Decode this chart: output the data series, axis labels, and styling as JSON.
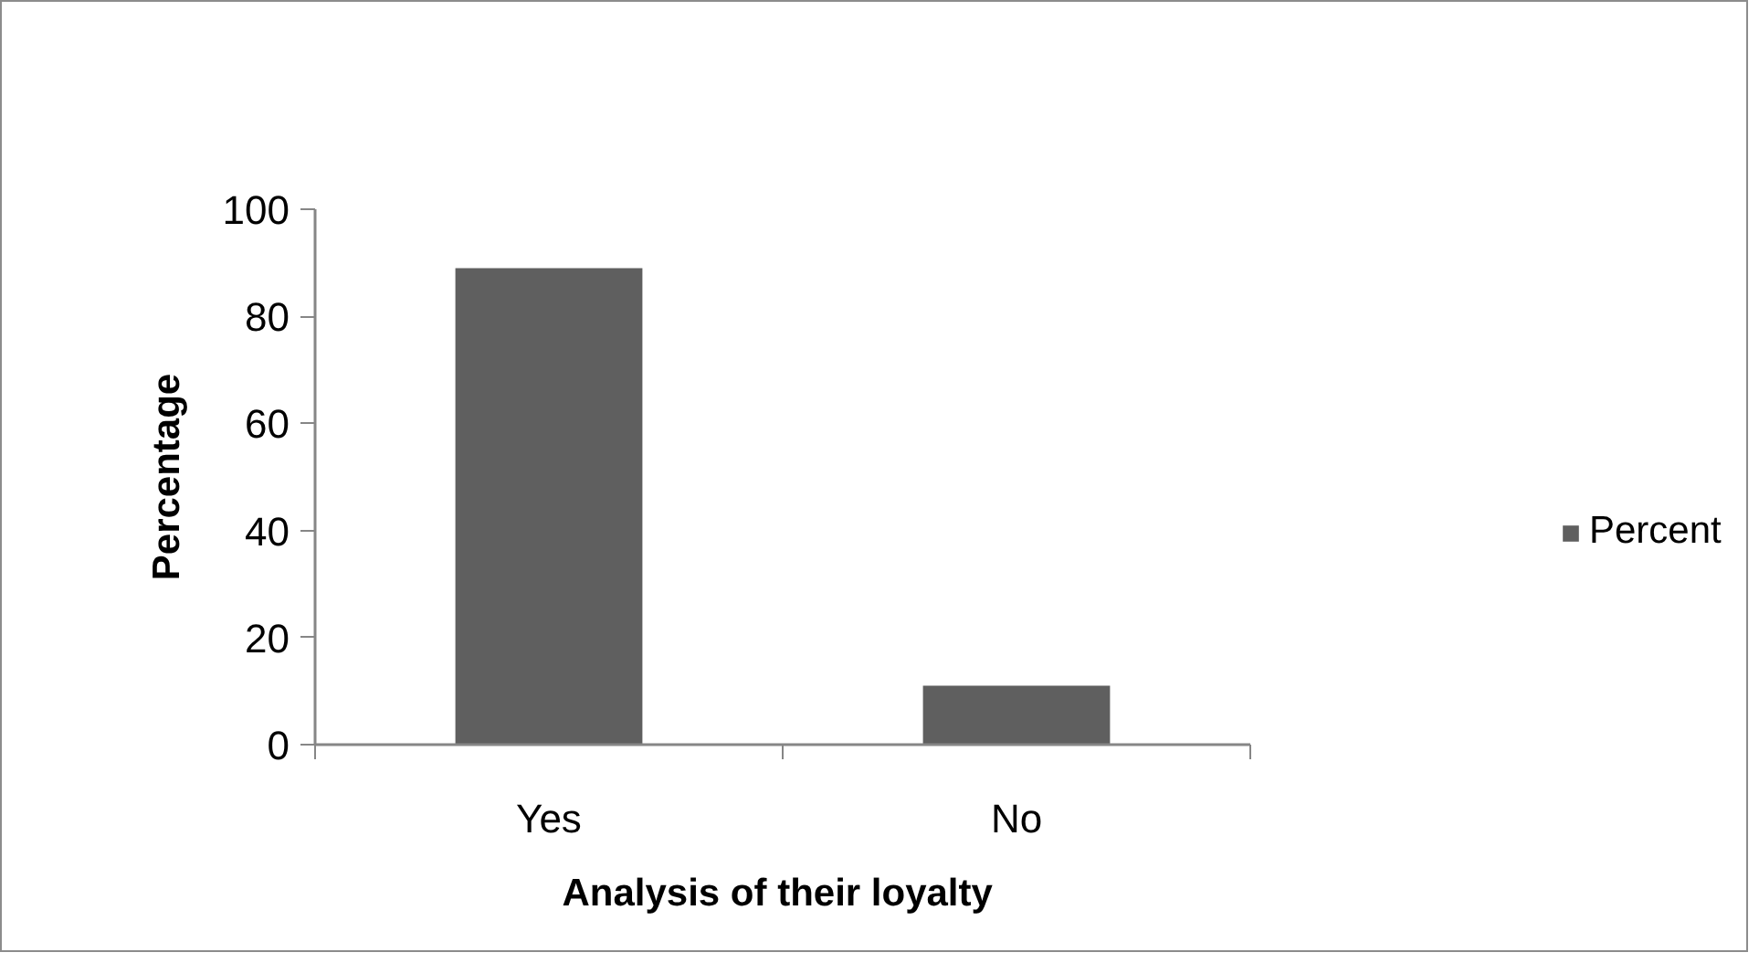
{
  "chart_data": {
    "type": "bar",
    "xlabel": "Analysis of their  loyalty",
    "ylabel": "Percentage",
    "categories": [
      "Yes",
      "No"
    ],
    "series": [
      {
        "name": "Percent",
        "color": "#5f5f5f",
        "values": [
          89,
          11
        ]
      }
    ],
    "ylim": [
      0,
      100
    ],
    "yticks": [
      0,
      20,
      40,
      60,
      80,
      100
    ],
    "grid": false,
    "legend": "right"
  }
}
